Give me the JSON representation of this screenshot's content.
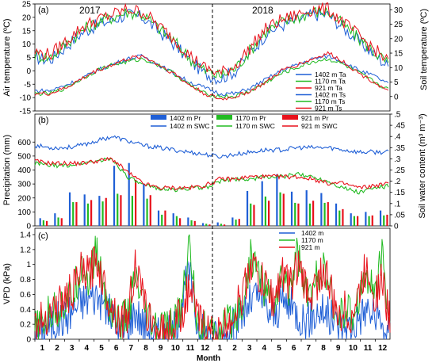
{
  "colors": {
    "e1402": "#1f5fd6",
    "e1170": "#22bb22",
    "e921": "#e8111b"
  },
  "months": [
    "1",
    "2",
    "3",
    "4",
    "5",
    "6",
    "7",
    "8",
    "9",
    "10",
    "11",
    "12",
    "1",
    "2",
    "3",
    "4",
    "5",
    "6",
    "7",
    "8",
    "9",
    "10",
    "11",
    "12"
  ],
  "xlabel": "Month",
  "chart_data": [
    {
      "type": "line",
      "panel_label": "(a)",
      "year_labels": [
        "2017",
        "2018"
      ],
      "ylabel": "Air temperature (ºC)",
      "y2label": "Soil temperature (ºC)",
      "ylim": [
        -15,
        25
      ],
      "y2lim": [
        -5,
        32
      ],
      "yticks": [
        -15,
        -10,
        -5,
        0,
        5,
        10,
        15,
        20,
        25
      ],
      "y2ticks": [
        0,
        5,
        10,
        15,
        20,
        25,
        30
      ],
      "x_months": [
        0.5,
        1.5,
        2.5,
        3.5,
        4.5,
        5.5,
        6.5,
        7.5,
        8.5,
        9.5,
        10.5,
        11.5,
        12.5,
        13.5,
        14.5,
        15.5,
        16.5,
        17.5,
        18.5,
        19.5,
        20.5,
        21.5,
        22.5,
        23.5
      ],
      "legend": [
        "1402 m Ta",
        "1170 m Ta",
        "921 m Ta",
        "1402 m Ts",
        "1170 m Ts",
        "921 m Ts"
      ],
      "series": [
        {
          "name": "1402 m Ta",
          "axis": "left",
          "values": [
            5,
            4,
            9,
            14,
            17,
            19,
            21,
            20,
            15,
            10,
            4,
            -1,
            -3,
            0,
            7,
            14,
            17,
            19,
            21,
            21,
            16,
            11,
            6,
            1
          ]
        },
        {
          "name": "1170 m Ta",
          "axis": "left",
          "values": [
            6,
            5,
            10,
            15,
            18,
            20,
            22,
            21,
            16,
            11,
            5,
            0,
            -2,
            1,
            8,
            15,
            18,
            20,
            22,
            22,
            17,
            12,
            7,
            2
          ]
        },
        {
          "name": "921 m Ta",
          "axis": "left",
          "values": [
            7,
            6,
            11,
            16,
            19,
            21,
            23,
            22,
            17,
            12,
            6,
            1,
            -1,
            2,
            9,
            16,
            19,
            21,
            23,
            23,
            18,
            13,
            8,
            3
          ]
        },
        {
          "name": "1402 m Ts",
          "axis": "right",
          "values": [
            2,
            2,
            4,
            6,
            9,
            11,
            13,
            14,
            11,
            8,
            5,
            3,
            1,
            1,
            3,
            6,
            9,
            11,
            13,
            14,
            12,
            9,
            7,
            4
          ]
        },
        {
          "name": "1170 m Ts",
          "axis": "right",
          "values": [
            1,
            1,
            3,
            6,
            9,
            11,
            12,
            13,
            11,
            8,
            4,
            1,
            0,
            0,
            2,
            5,
            8,
            10,
            12,
            13,
            11,
            8,
            5,
            2
          ]
        },
        {
          "name": "921 m Ts",
          "axis": "right",
          "values": [
            1,
            1,
            3,
            6,
            9,
            11,
            13,
            14,
            11,
            8,
            4,
            1,
            -1,
            0,
            2,
            5,
            9,
            11,
            13,
            15,
            12,
            8,
            5,
            1
          ]
        }
      ]
    },
    {
      "type": "bar+line",
      "panel_label": "(b)",
      "ylabel": "Precipitation (mm)",
      "y2label": "Soil water content (m³ m⁻³)",
      "ylim": [
        0,
        800
      ],
      "yticks": [
        0,
        100,
        200,
        300,
        400,
        500,
        600
      ],
      "y2lim": [
        0,
        0.5
      ],
      "y2ticks": [
        0,
        0.05,
        0.1,
        0.15,
        0.2,
        0.25,
        0.3,
        0.35,
        0.4,
        0.45,
        0.5
      ],
      "legend": [
        "1402 m Pr",
        "1170 m Pr",
        "921 m Pr",
        "1402 m SWC",
        "1170 m SWC",
        "921 m SWC"
      ],
      "categories": [
        "1",
        "2",
        "3",
        "4",
        "5",
        "6",
        "7",
        "8",
        "9",
        "10",
        "11",
        "12",
        "1",
        "2",
        "3",
        "4",
        "5",
        "6",
        "7",
        "8",
        "9",
        "10",
        "11",
        "12"
      ],
      "bars": [
        {
          "name": "1402 m Pr",
          "values": [
            55,
            90,
            240,
            225,
            215,
            430,
            450,
            300,
            110,
            90,
            60,
            20,
            25,
            60,
            250,
            320,
            370,
            245,
            255,
            235,
            160,
            90,
            100,
            110
          ]
        },
        {
          "name": "1170 m Pr",
          "values": [
            40,
            60,
            170,
            160,
            175,
            230,
            215,
            195,
            80,
            70,
            40,
            15,
            15,
            45,
            160,
            210,
            240,
            165,
            160,
            165,
            110,
            70,
            70,
            75
          ]
        },
        {
          "name": "921 m Pr",
          "values": [
            35,
            55,
            170,
            185,
            200,
            220,
            330,
            220,
            110,
            55,
            35,
            10,
            10,
            50,
            150,
            180,
            230,
            160,
            180,
            170,
            120,
            70,
            75,
            80
          ]
        }
      ],
      "swc": [
        {
          "name": "1402 m SWC",
          "values": [
            0.36,
            0.35,
            0.35,
            0.36,
            0.38,
            0.4,
            0.38,
            0.36,
            0.35,
            0.34,
            0.33,
            0.32,
            0.31,
            0.32,
            0.33,
            0.34,
            0.34,
            0.35,
            0.35,
            0.35,
            0.34,
            0.33,
            0.33,
            0.33
          ]
        },
        {
          "name": "1170 m SWC",
          "values": [
            0.28,
            0.27,
            0.27,
            0.28,
            0.29,
            0.3,
            0.22,
            0.18,
            0.17,
            0.16,
            0.17,
            0.17,
            0.2,
            0.21,
            0.21,
            0.22,
            0.22,
            0.23,
            0.22,
            0.2,
            0.17,
            0.15,
            0.17,
            0.18
          ]
        },
        {
          "name": "921 m SWC",
          "values": [
            0.29,
            0.28,
            0.28,
            0.28,
            0.29,
            0.3,
            0.24,
            0.19,
            0.17,
            0.17,
            0.17,
            0.18,
            0.21,
            0.21,
            0.22,
            0.22,
            0.22,
            0.22,
            0.21,
            0.19,
            0.19,
            0.17,
            0.18,
            0.19
          ]
        }
      ]
    },
    {
      "type": "line",
      "panel_label": "(c)",
      "ylabel": "VPD (kPa)",
      "ylim": [
        0,
        1.4
      ],
      "yticks": [
        0,
        0.2,
        0.4,
        0.6,
        0.8,
        1,
        1.2,
        1.4
      ],
      "legend": [
        "1402 m",
        "1170 m",
        "921 m"
      ],
      "x_days": [
        0.5,
        1,
        1.5,
        2,
        2.5,
        3,
        3.5,
        4,
        4.5,
        5,
        5.5,
        6,
        6.5,
        7,
        7.5,
        8,
        8.5,
        9,
        9.5,
        10,
        10.5,
        11,
        11.5,
        12,
        12.5,
        13,
        13.5,
        14,
        14.5,
        15,
        15.5,
        16,
        16.5,
        17,
        17.5,
        18,
        18.5,
        19,
        19.5,
        20,
        20.5,
        21,
        21.5,
        22,
        22.5,
        23,
        23.5
      ],
      "series": [
        {
          "name": "1402 m",
          "values": [
            0.05,
            0.1,
            0.2,
            0.25,
            0.3,
            0.4,
            0.5,
            0.55,
            0.6,
            0.45,
            0.3,
            0.1,
            0.15,
            0.4,
            0.2,
            0.1,
            0.05,
            0.05,
            0.1,
            0.5,
            0.9,
            0.2,
            0.05,
            0.02,
            0.02,
            0.1,
            0.2,
            0.35,
            0.5,
            0.6,
            0.4,
            0.3,
            0.5,
            0.45,
            0.35,
            0.25,
            0.3,
            0.4,
            0.3,
            0.2,
            0.2,
            0.15,
            0.3,
            0.4,
            0.3,
            0.15,
            0.05
          ]
        },
        {
          "name": "1170 m",
          "values": [
            0.1,
            0.2,
            0.35,
            0.4,
            0.5,
            0.6,
            1.0,
            0.8,
            1.2,
            0.6,
            0.4,
            0.2,
            0.3,
            0.8,
            0.4,
            0.2,
            0.1,
            0.1,
            0.2,
            0.4,
            1.3,
            0.3,
            0.1,
            0.05,
            0.05,
            0.2,
            0.35,
            0.5,
            1.1,
            0.9,
            0.6,
            0.5,
            0.8,
            0.7,
            1.2,
            0.6,
            0.6,
            1.0,
            0.7,
            0.3,
            0.4,
            0.3,
            0.6,
            0.9,
            0.6,
            1.1,
            0.2
          ]
        },
        {
          "name": "921 m",
          "values": [
            0.15,
            0.25,
            0.4,
            0.45,
            0.55,
            0.65,
            0.9,
            0.85,
            1.1,
            0.7,
            0.45,
            0.25,
            0.3,
            1.0,
            0.5,
            0.25,
            0.1,
            0.1,
            0.2,
            0.35,
            0.7,
            0.3,
            0.15,
            0.05,
            0.05,
            0.25,
            0.4,
            0.6,
            1.05,
            0.8,
            0.7,
            0.5,
            0.9,
            0.7,
            1.0,
            0.7,
            0.6,
            0.9,
            0.8,
            0.3,
            0.4,
            0.3,
            0.6,
            1.0,
            0.6,
            0.8,
            0.2
          ]
        }
      ]
    }
  ]
}
